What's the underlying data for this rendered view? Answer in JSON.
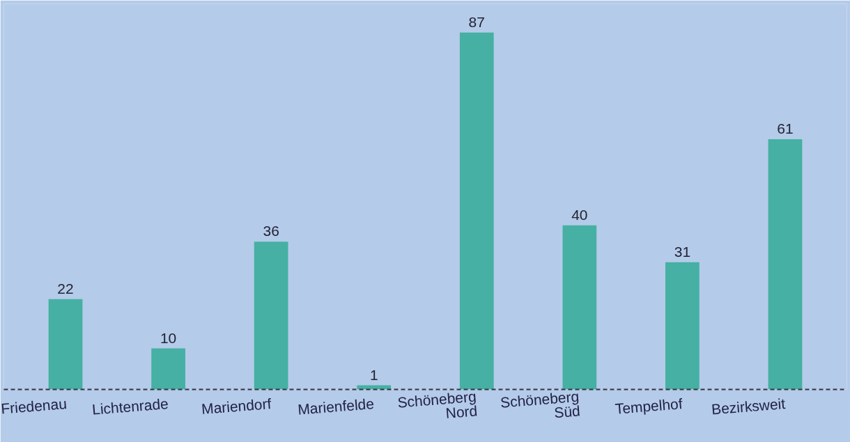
{
  "chart_data": {
    "type": "bar",
    "categories": [
      "Friedenau",
      "Lichtenrade",
      "Mariendorf",
      "Marienfelde",
      "Schöneberg\nNord",
      "Schöneberg\nSüd",
      "Tempelhof",
      "Bezirksweit"
    ],
    "values": [
      22,
      10,
      36,
      1,
      87,
      40,
      31,
      61
    ],
    "color": "#45b0a3",
    "ylim": [
      0,
      94
    ],
    "data_labels": true,
    "tick_labels": "x"
  }
}
